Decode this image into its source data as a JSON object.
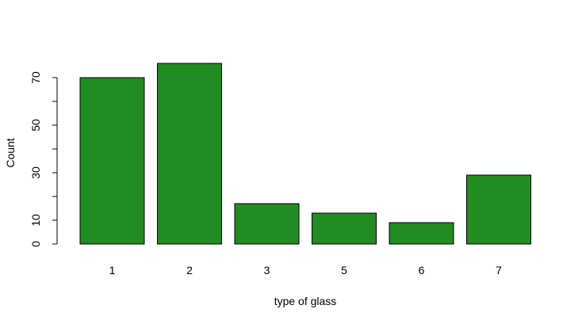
{
  "chart_data": {
    "type": "bar",
    "title": "",
    "xlabel": "type of glass",
    "ylabel": "Count",
    "categories": [
      "1",
      "2",
      "3",
      "5",
      "6",
      "7"
    ],
    "values": [
      70,
      76,
      17,
      13,
      9,
      29
    ],
    "ylim": [
      0,
      76
    ],
    "y_ticks": [
      0,
      10,
      20,
      30,
      40,
      50,
      60,
      70
    ],
    "y_tick_labels": [
      "0",
      "10",
      "",
      "30",
      "",
      "50",
      "",
      "70"
    ],
    "grid": false,
    "legend": "none",
    "bar_color": "#228B22",
    "bar_edge_color": "#000000"
  }
}
